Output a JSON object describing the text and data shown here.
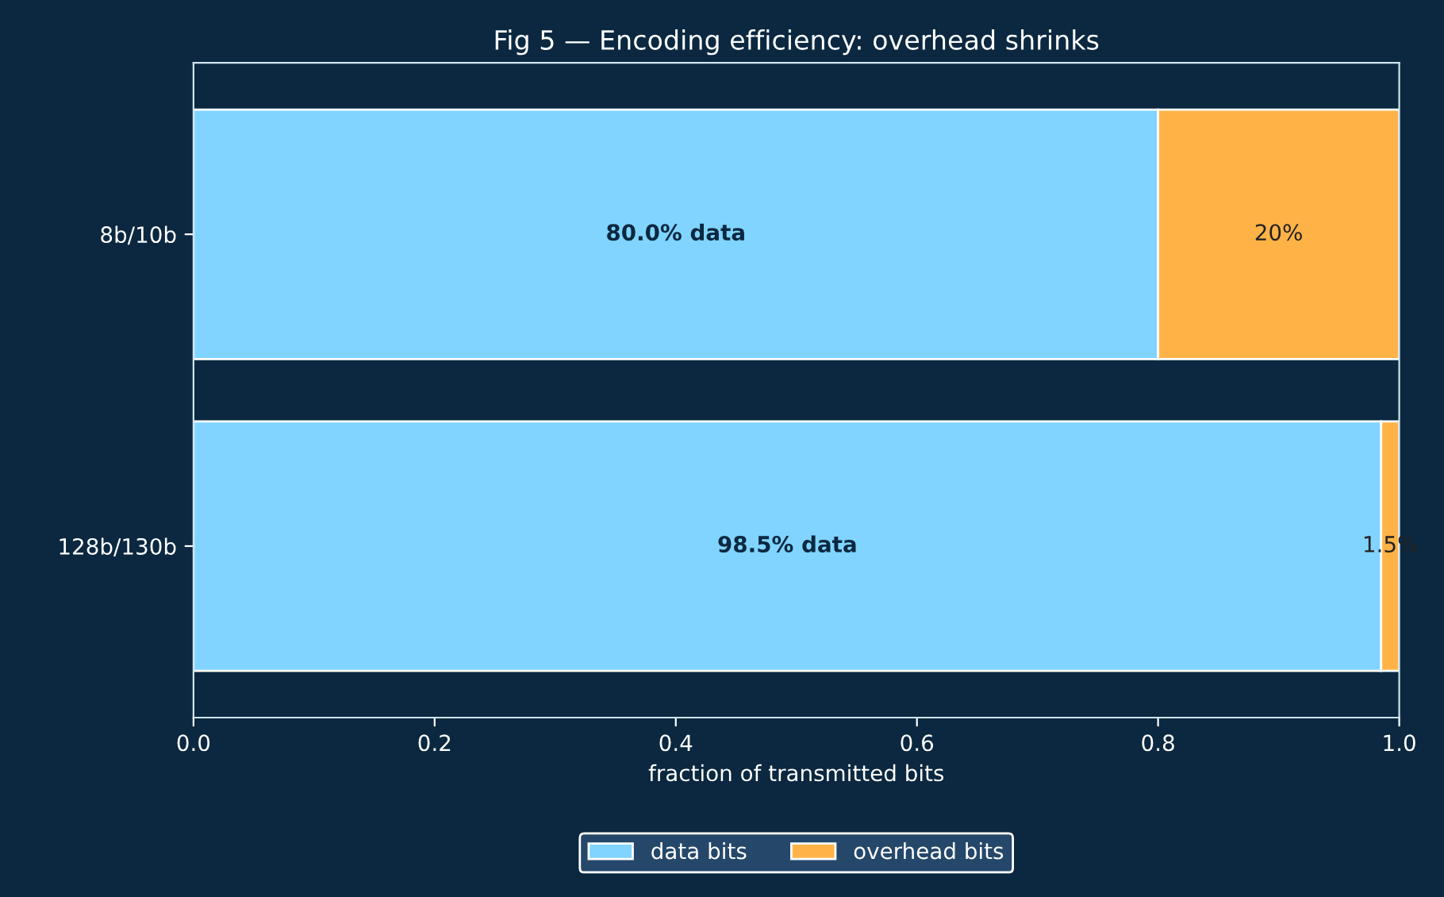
{
  "chart_data": {
    "type": "bar",
    "orientation": "horizontal",
    "stacked": true,
    "title": "Fig 5 — Encoding efficiency: overhead shrinks",
    "xlabel": "fraction of transmitted bits",
    "categories": [
      "8b/10b",
      "128b/130b"
    ],
    "series": [
      {
        "name": "data bits",
        "color": "#80d4ff",
        "values": [
          0.8,
          0.985
        ],
        "value_labels": [
          "80.0% data",
          "98.5% data"
        ]
      },
      {
        "name": "overhead bits",
        "color": "#ffb347",
        "values": [
          0.2,
          0.015
        ],
        "value_labels": [
          "20%",
          "1.5%"
        ]
      }
    ],
    "xlim": [
      0,
      1
    ],
    "xticks": [
      {
        "value": 0,
        "label": "0.0"
      },
      0.2,
      0.4,
      0.6,
      0.8,
      {
        "value": 1,
        "label": "1.0"
      }
    ],
    "grid": false,
    "legend": "bottom"
  }
}
